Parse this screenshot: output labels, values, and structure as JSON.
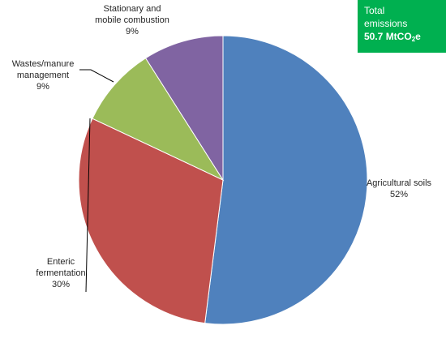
{
  "chart_data": {
    "type": "pie",
    "title": "",
    "slices": [
      {
        "label_lines": [
          "Agricultural soils"
        ],
        "pct_label": "52%",
        "value": 52,
        "color": "#4f81bd"
      },
      {
        "label_lines": [
          "Enteric",
          "fermentation"
        ],
        "pct_label": "30%",
        "value": 30,
        "color": "#c0504d"
      },
      {
        "label_lines": [
          "Wastes/manure",
          "management"
        ],
        "pct_label": "9%",
        "value": 9,
        "color": "#9bbb59"
      },
      {
        "label_lines": [
          "Stationary and",
          "mobile combustion"
        ],
        "pct_label": "9%",
        "value": 9,
        "color": "#8064a2"
      }
    ],
    "start": "12 o'clock",
    "direction": "clockwise"
  },
  "total_box": {
    "line1": "Total",
    "line2": "emissions",
    "value": "50.7 MtCO",
    "value_sub": "2",
    "value_suffix": "e",
    "color": "#00b050"
  }
}
